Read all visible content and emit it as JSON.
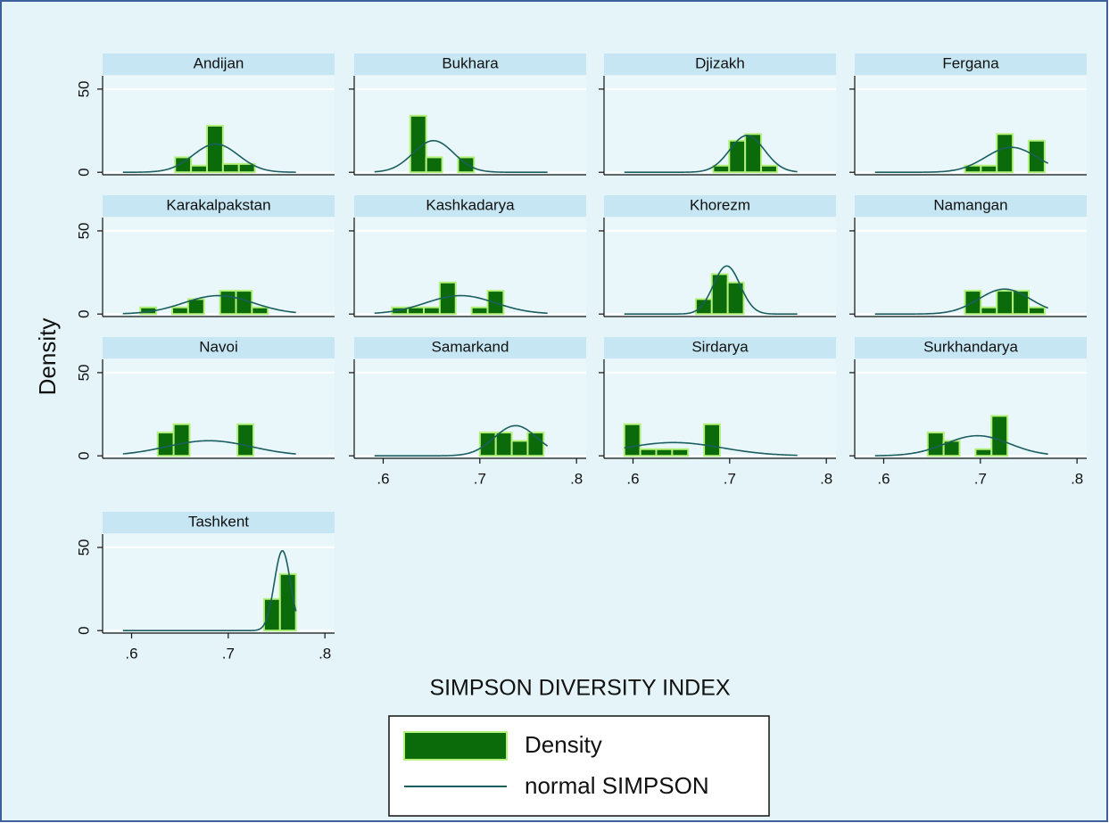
{
  "chart_data": {
    "type": "histogram-grid",
    "axis_title_y": "Density",
    "axis_title_x": "SIMPSON DIVERSITY INDEX",
    "legend": [
      "Density",
      "normal SIMPSON"
    ],
    "bar_color": "#0b6b0b",
    "bar_edge_color": "#b4f07a",
    "curve_color": "#1b5e60",
    "xlim": [
      0.57,
      0.81
    ],
    "xticks": [
      {
        "value": 0.6,
        "label": ".6"
      },
      {
        "value": 0.7,
        "label": ".7"
      },
      {
        "value": 0.8,
        "label": ".8"
      }
    ],
    "ylim": [
      -1.5,
      58
    ],
    "yticks": [
      0,
      50
    ],
    "normal_xrange": [
      0.591,
      0.77
    ],
    "panels": [
      {
        "title": "Andijan",
        "bins": [
          0.645,
          0.6615,
          0.678,
          0.6945,
          0.711,
          0.7275
        ],
        "values": [
          9,
          4,
          28,
          5,
          5
        ],
        "normal": {
          "mean": 0.687,
          "sd": 0.0235
        }
      },
      {
        "title": "Bukhara",
        "bins": [
          0.628,
          0.6445,
          0.661,
          0.6775,
          0.694
        ],
        "values": [
          34,
          9,
          0,
          9
        ],
        "normal": {
          "mean": 0.652,
          "sd": 0.021
        }
      },
      {
        "title": "Djizakh",
        "bins": [
          0.683,
          0.6995,
          0.716,
          0.7325,
          0.749
        ],
        "values": [
          4,
          19,
          23,
          4
        ],
        "normal": {
          "mean": 0.718,
          "sd": 0.018
        }
      },
      {
        "title": "Fergana",
        "bins": [
          0.684,
          0.7005,
          0.717,
          0.7335,
          0.75,
          0.7665
        ],
        "values": [
          4,
          4,
          23,
          0,
          19
        ],
        "normal": {
          "mean": 0.732,
          "sd": 0.0266
        }
      },
      {
        "title": "Karakalpakstan",
        "bins": [
          0.609,
          0.6255,
          0.642,
          0.6585,
          0.675,
          0.6915,
          0.708,
          0.7245,
          0.741
        ],
        "values": [
          4,
          0,
          4,
          9,
          0,
          14,
          14,
          4
        ],
        "normal": {
          "mean": 0.69,
          "sd": 0.036
        }
      },
      {
        "title": "Kashkadarya",
        "bins": [
          0.609,
          0.6255,
          0.642,
          0.6585,
          0.675,
          0.6915,
          0.708,
          0.7245
        ],
        "values": [
          4,
          4,
          4,
          19,
          0,
          4,
          14
        ],
        "normal": {
          "mean": 0.68,
          "sd": 0.036
        }
      },
      {
        "title": "Khorezm",
        "bins": [
          0.665,
          0.6815,
          0.698,
          0.7145
        ],
        "values": [
          9,
          24,
          19
        ],
        "normal": {
          "mean": 0.697,
          "sd": 0.0138
        }
      },
      {
        "title": "Namangan",
        "bins": [
          0.684,
          0.7005,
          0.717,
          0.7335,
          0.75,
          0.7665
        ],
        "values": [
          14,
          4,
          14,
          14,
          4
        ],
        "normal": {
          "mean": 0.725,
          "sd": 0.0266
        }
      },
      {
        "title": "Navoi",
        "bins": [
          0.627,
          0.6435,
          0.66,
          0.6765,
          0.693,
          0.7095,
          0.726
        ],
        "values": [
          14,
          19,
          0,
          0,
          0,
          19
        ],
        "normal": {
          "mean": 0.68,
          "sd": 0.044
        }
      },
      {
        "title": "Samarkand",
        "bins": [
          0.7,
          0.7165,
          0.733,
          0.7495,
          0.766
        ],
        "values": [
          14,
          14,
          9,
          14
        ],
        "normal": {
          "mean": 0.737,
          "sd": 0.022
        }
      },
      {
        "title": "Sirdarya",
        "bins": [
          0.591,
          0.6075,
          0.624,
          0.6405,
          0.657,
          0.6735,
          0.69
        ],
        "values": [
          19,
          4,
          4,
          4,
          0,
          19
        ],
        "normal": {
          "mean": 0.642,
          "sd": 0.05
        }
      },
      {
        "title": "Surkhandarya",
        "bins": [
          0.6455,
          0.662,
          0.6785,
          0.695,
          0.7115,
          0.728
        ],
        "values": [
          14,
          9,
          0,
          4,
          24
        ],
        "normal": {
          "mean": 0.697,
          "sd": 0.033
        }
      },
      {
        "title": "Tashkent",
        "bins": [
          0.737,
          0.7535,
          0.77
        ],
        "values": [
          19,
          34
        ],
        "normal": {
          "mean": 0.756,
          "sd": 0.0083
        }
      }
    ]
  }
}
